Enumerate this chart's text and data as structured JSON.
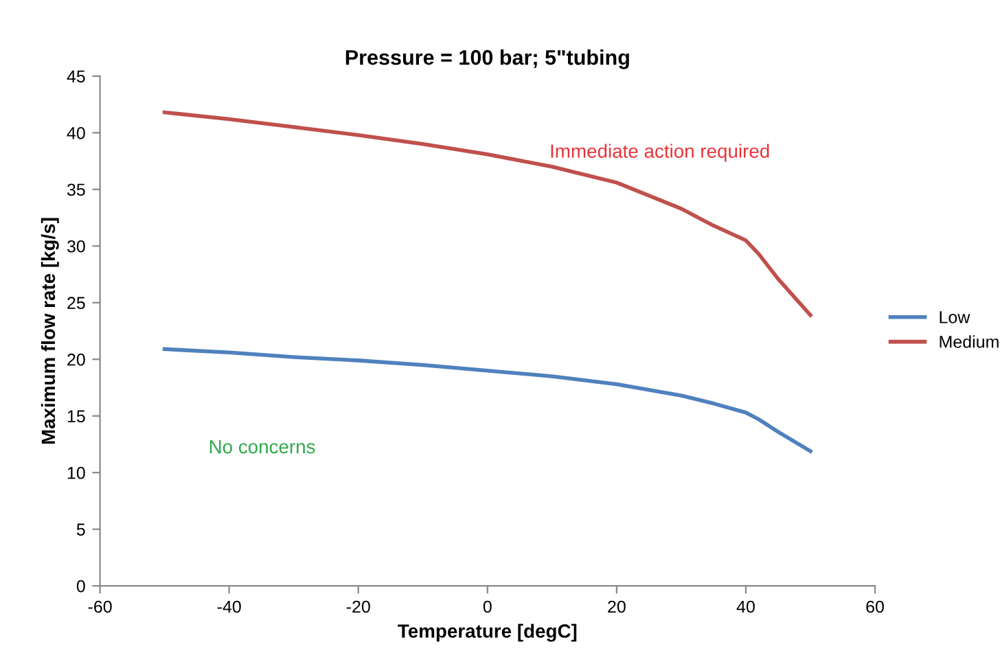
{
  "chart_data": {
    "type": "line",
    "title": "Pressure = 100 bar; 5\"tubing",
    "xlabel": "Temperature [degC]",
    "ylabel": "Maximum flow rate [kg/s]",
    "xlim": [
      -60,
      60
    ],
    "xticks": [
      -60,
      -40,
      -20,
      0,
      20,
      40,
      60
    ],
    "ylim": [
      0,
      45
    ],
    "yticks": [
      0,
      5,
      10,
      15,
      20,
      25,
      30,
      35,
      40,
      45
    ],
    "x": [
      -50,
      -40,
      -30,
      -20,
      -10,
      0,
      10,
      20,
      30,
      35,
      40,
      42,
      45,
      50
    ],
    "series": [
      {
        "name": "Low",
        "color": "#4f81bd",
        "values": [
          20.9,
          20.6,
          20.2,
          19.9,
          19.5,
          19.0,
          18.5,
          17.8,
          16.8,
          16.1,
          15.3,
          14.7,
          13.6,
          11.9
        ]
      },
      {
        "name": "Medium",
        "color": "#c0504d",
        "values": [
          41.8,
          41.2,
          40.5,
          39.8,
          39.0,
          38.1,
          37.0,
          35.6,
          33.3,
          31.8,
          30.5,
          29.3,
          27.1,
          23.9
        ]
      }
    ],
    "annotations": [
      "Immediate action required",
      "No concerns"
    ],
    "legend": "right",
    "grid": false
  }
}
